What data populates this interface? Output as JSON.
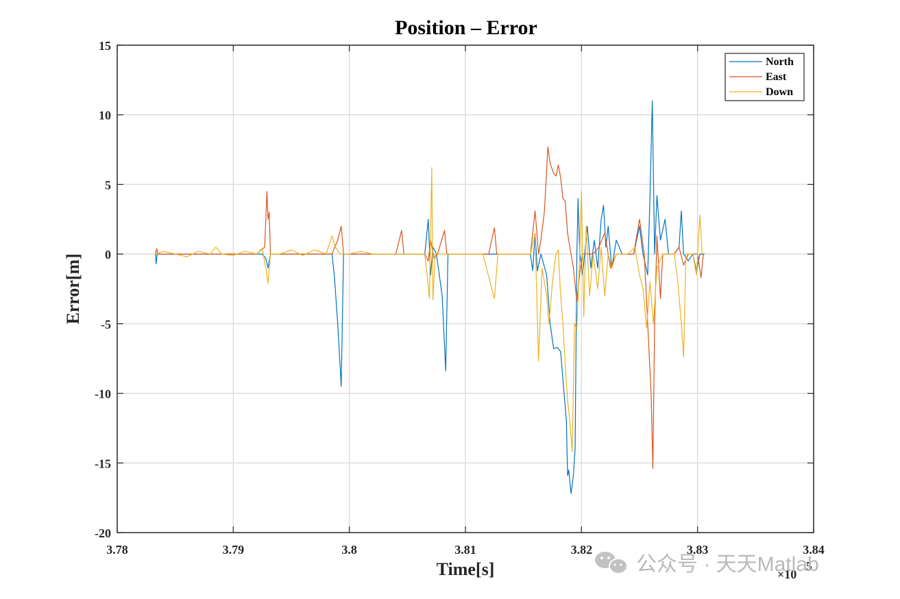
{
  "chart_data": {
    "type": "line",
    "title": "Position – Error",
    "xlabel": "Time[s]",
    "ylabel": "Error[m]",
    "x_exponent_label": "×10",
    "x_exponent_power": "5",
    "xlim": [
      378000,
      384000
    ],
    "ylim": [
      -20,
      15
    ],
    "xticks": [
      378000,
      379000,
      380000,
      381000,
      382000,
      383000,
      384000
    ],
    "xtick_labels": [
      "3.78",
      "3.79",
      "3.8",
      "3.81",
      "3.82",
      "3.83",
      "3.84"
    ],
    "yticks": [
      -20,
      -15,
      -10,
      -5,
      0,
      5,
      10,
      15
    ],
    "ytick_labels": [
      "-20",
      "-15",
      "-10",
      "-5",
      "0",
      "5",
      "10",
      "15"
    ],
    "grid": true,
    "legend_position": "top-right",
    "series": [
      {
        "name": "North",
        "color": "#0072BD",
        "points": [
          [
            378330,
            0
          ],
          [
            378335,
            -0.7
          ],
          [
            378345,
            0
          ],
          [
            378500,
            0
          ],
          [
            379250,
            0
          ],
          [
            379280,
            -0.3
          ],
          [
            379300,
            -1.0
          ],
          [
            379320,
            0
          ],
          [
            379400,
            0
          ],
          [
            379850,
            0
          ],
          [
            379870,
            -1.5
          ],
          [
            379900,
            -5
          ],
          [
            379930,
            -9.5
          ],
          [
            379950,
            0
          ],
          [
            380300,
            0
          ],
          [
            380650,
            0
          ],
          [
            380680,
            2.5
          ],
          [
            380700,
            -1.5
          ],
          [
            380720,
            0.5
          ],
          [
            380750,
            0
          ],
          [
            380800,
            -3
          ],
          [
            380830,
            -8.4
          ],
          [
            380850,
            0
          ],
          [
            381200,
            0
          ],
          [
            381560,
            0
          ],
          [
            381580,
            -1.2
          ],
          [
            381600,
            1.5
          ],
          [
            381620,
            -1.2
          ],
          [
            381650,
            0
          ],
          [
            381700,
            -1.5
          ],
          [
            381730,
            -5
          ],
          [
            381760,
            -6.8
          ],
          [
            381790,
            -6.7
          ],
          [
            381820,
            -7
          ],
          [
            381850,
            -10
          ],
          [
            381870,
            -12
          ],
          [
            381880,
            -15.9
          ],
          [
            381890,
            -15.5
          ],
          [
            381910,
            -17.2
          ],
          [
            381930,
            -15.9
          ],
          [
            381945,
            -14
          ],
          [
            381960,
            0
          ],
          [
            381970,
            4
          ],
          [
            381985,
            0
          ],
          [
            382010,
            -1.5
          ],
          [
            382050,
            2
          ],
          [
            382080,
            -1
          ],
          [
            382110,
            1
          ],
          [
            382140,
            -1
          ],
          [
            382170,
            2.5
          ],
          [
            382190,
            3.5
          ],
          [
            382210,
            0.5
          ],
          [
            382230,
            2
          ],
          [
            382260,
            -1
          ],
          [
            382300,
            1
          ],
          [
            382350,
            0
          ],
          [
            382450,
            0
          ],
          [
            382500,
            2
          ],
          [
            382530,
            0
          ],
          [
            382570,
            -1.5
          ],
          [
            382590,
            4
          ],
          [
            382610,
            11
          ],
          [
            382630,
            0
          ],
          [
            382650,
            4.2
          ],
          [
            382680,
            1
          ],
          [
            382720,
            2.5
          ],
          [
            382750,
            0
          ],
          [
            382800,
            0
          ],
          [
            382840,
            0.5
          ],
          [
            382860,
            3.1
          ],
          [
            382880,
            0
          ],
          [
            382920,
            -0.5
          ],
          [
            382960,
            0
          ],
          [
            382990,
            -1.2
          ],
          [
            383020,
            0
          ],
          [
            383060,
            0
          ]
        ]
      },
      {
        "name": "East",
        "color": "#D95319",
        "points": [
          [
            378330,
            0
          ],
          [
            378340,
            0.4
          ],
          [
            378350,
            0
          ],
          [
            378500,
            0
          ],
          [
            379200,
            0
          ],
          [
            379270,
            0.5
          ],
          [
            379290,
            4.5
          ],
          [
            379300,
            2.5
          ],
          [
            379310,
            3.0
          ],
          [
            379320,
            0
          ],
          [
            379400,
            0
          ],
          [
            379850,
            0
          ],
          [
            379900,
            1
          ],
          [
            379930,
            2
          ],
          [
            379950,
            0
          ],
          [
            380400,
            0
          ],
          [
            380450,
            1.7
          ],
          [
            380470,
            0
          ],
          [
            380650,
            0
          ],
          [
            380680,
            -0.5
          ],
          [
            380700,
            1.0
          ],
          [
            380730,
            -0.3
          ],
          [
            380760,
            0
          ],
          [
            380820,
            1.7
          ],
          [
            380840,
            0
          ],
          [
            381200,
            0
          ],
          [
            381250,
            1.9
          ],
          [
            381270,
            0
          ],
          [
            381560,
            0
          ],
          [
            381600,
            3.1
          ],
          [
            381630,
            0
          ],
          [
            381650,
            1
          ],
          [
            381680,
            3
          ],
          [
            381700,
            6
          ],
          [
            381710,
            7.7
          ],
          [
            381730,
            6.5
          ],
          [
            381760,
            5.8
          ],
          [
            381780,
            5.6
          ],
          [
            381800,
            6.4
          ],
          [
            381820,
            5.5
          ],
          [
            381840,
            4
          ],
          [
            381860,
            3.8
          ],
          [
            381880,
            1.5
          ],
          [
            381900,
            0.5
          ],
          [
            381930,
            -1
          ],
          [
            381960,
            -3.4
          ],
          [
            381990,
            -1
          ],
          [
            382010,
            0
          ],
          [
            382100,
            0
          ],
          [
            382150,
            0.5
          ],
          [
            382200,
            1.5
          ],
          [
            382250,
            -1
          ],
          [
            382300,
            0
          ],
          [
            382400,
            0
          ],
          [
            382450,
            0
          ],
          [
            382500,
            2.5
          ],
          [
            382540,
            0
          ],
          [
            382570,
            -5
          ],
          [
            382600,
            -10
          ],
          [
            382615,
            -15.4
          ],
          [
            382630,
            -5
          ],
          [
            382650,
            1.3
          ],
          [
            382680,
            -3.2
          ],
          [
            382700,
            0
          ],
          [
            382750,
            0
          ],
          [
            382800,
            0
          ],
          [
            382840,
            0.5
          ],
          [
            382880,
            -0.8
          ],
          [
            382920,
            0
          ],
          [
            383000,
            0
          ],
          [
            383030,
            -1.7
          ],
          [
            383050,
            0
          ]
        ]
      },
      {
        "name": "Down",
        "color": "#EDB120",
        "points": [
          [
            378330,
            0
          ],
          [
            378400,
            0.2
          ],
          [
            378500,
            0
          ],
          [
            378600,
            -0.2
          ],
          [
            378700,
            0.2
          ],
          [
            378800,
            0
          ],
          [
            378850,
            0.5
          ],
          [
            378900,
            0
          ],
          [
            379000,
            -0.1
          ],
          [
            379100,
            0.2
          ],
          [
            379200,
            0
          ],
          [
            379250,
            0.4
          ],
          [
            379280,
            -1.0
          ],
          [
            379300,
            -2.1
          ],
          [
            379320,
            0
          ],
          [
            379400,
            0
          ],
          [
            379500,
            0.3
          ],
          [
            379600,
            -0.1
          ],
          [
            379700,
            0.3
          ],
          [
            379800,
            0
          ],
          [
            379850,
            1.3
          ],
          [
            379880,
            0.5
          ],
          [
            379920,
            0
          ],
          [
            380000,
            0
          ],
          [
            380100,
            0.2
          ],
          [
            380200,
            0
          ],
          [
            380300,
            0
          ],
          [
            380650,
            0
          ],
          [
            380670,
            -1.5
          ],
          [
            380690,
            -3.2
          ],
          [
            380710,
            6.2
          ],
          [
            380720,
            -3.3
          ],
          [
            380740,
            0
          ],
          [
            380820,
            0
          ],
          [
            381150,
            0
          ],
          [
            381250,
            -3.2
          ],
          [
            381280,
            0
          ],
          [
            381560,
            0
          ],
          [
            381600,
            1.5
          ],
          [
            381630,
            -7.7
          ],
          [
            381660,
            -1
          ],
          [
            381700,
            -3
          ],
          [
            381720,
            -5.0
          ],
          [
            381750,
            -2
          ],
          [
            381780,
            0
          ],
          [
            381800,
            0.3
          ],
          [
            381820,
            -3
          ],
          [
            381840,
            -5
          ],
          [
            381860,
            -8
          ],
          [
            381880,
            -10.5
          ],
          [
            381900,
            -12
          ],
          [
            381920,
            -14.2
          ],
          [
            381940,
            -5
          ],
          [
            381960,
            -5.4
          ],
          [
            381980,
            -1
          ],
          [
            382000,
            4.5
          ],
          [
            382020,
            -4.5
          ],
          [
            382040,
            2
          ],
          [
            382070,
            -3
          ],
          [
            382100,
            0
          ],
          [
            382140,
            -2.5
          ],
          [
            382170,
            0.5
          ],
          [
            382200,
            -3
          ],
          [
            382230,
            0
          ],
          [
            382260,
            -1
          ],
          [
            382300,
            0
          ],
          [
            382400,
            0
          ],
          [
            382460,
            0.5
          ],
          [
            382500,
            -1.5
          ],
          [
            382530,
            -2.5
          ],
          [
            382560,
            -5.3
          ],
          [
            382590,
            -2
          ],
          [
            382620,
            -5
          ],
          [
            382650,
            -1
          ],
          [
            382700,
            0
          ],
          [
            382800,
            0
          ],
          [
            382830,
            -2
          ],
          [
            382860,
            -5
          ],
          [
            382880,
            -7.4
          ],
          [
            382900,
            0
          ],
          [
            382960,
            0
          ],
          [
            382990,
            -1.5
          ],
          [
            383020,
            2.8
          ],
          [
            383040,
            0
          ]
        ]
      }
    ]
  },
  "watermark": "公众号 · 天天Matlab"
}
